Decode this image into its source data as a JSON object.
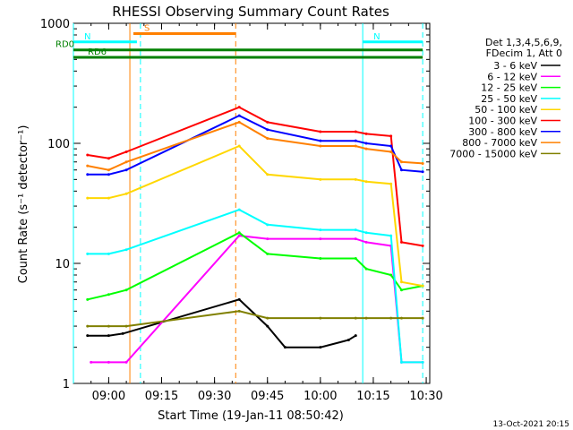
{
  "chart_data": {
    "type": "line",
    "title": "RHESSI Observing Summary Count Rates",
    "xlabel": "Start Time (19-Jan-11 08:50:42)",
    "ylabel": "Count Rate (s⁻¹ detector⁻¹)",
    "y_scale": "log",
    "ylim": [
      1,
      1000
    ],
    "xlim": [
      "08:50",
      "10:31"
    ],
    "y_ticks": [
      "1",
      "10",
      "100",
      "1000"
    ],
    "x_ticks": [
      "09:00",
      "09:15",
      "09:30",
      "09:45",
      "10:00",
      "10:15",
      "10:30"
    ],
    "footer": "13-Oct-2021 20:15",
    "legend": {
      "position": "top-right",
      "header": [
        "Det 1,3,4,5,6,9,",
        "FDecim 1, Att 0"
      ]
    },
    "flags": [
      {
        "label": "S",
        "color": "#ff8000",
        "start": "09:07",
        "end": "09:36",
        "level": 820
      },
      {
        "label": "N",
        "color": "#00ffff",
        "start": "08:50",
        "end": "09:08",
        "level": 700
      },
      {
        "label": "N",
        "color": "#00ffff",
        "start": "10:12",
        "end": "10:29",
        "level": 700
      },
      {
        "label": "RD0",
        "color": "#008000",
        "start": "08:50",
        "end": "10:29",
        "level": 600
      },
      {
        "label": "RD6",
        "color": "#008000",
        "start": "08:50",
        "end": "10:29",
        "level": 520
      }
    ],
    "event_lines": [
      {
        "time": "09:06",
        "color": "#ff8000",
        "style": "solid"
      },
      {
        "time": "09:36",
        "color": "#ff8000",
        "style": "dashed"
      },
      {
        "time": "08:50",
        "color": "#00ffff",
        "style": "solid"
      },
      {
        "time": "09:09",
        "color": "#00ffff",
        "style": "dashed"
      },
      {
        "time": "10:12",
        "color": "#00ffff",
        "style": "solid"
      },
      {
        "time": "10:29",
        "color": "#00ffff",
        "style": "dashed"
      }
    ],
    "series": [
      {
        "name": "3 - 6 keV",
        "color": "#000000",
        "times": [
          "08:54",
          "09:00",
          "09:04",
          "09:37",
          "09:45",
          "09:50",
          "10:00",
          "10:08",
          "10:10"
        ],
        "values": [
          2.5,
          2.5,
          2.6,
          5,
          3,
          2,
          2,
          2.3,
          2.5
        ]
      },
      {
        "name": "6 - 12 keV",
        "color": "#ff00ff",
        "times": [
          "08:55",
          "09:00",
          "09:05",
          "09:37",
          "09:45",
          "10:00",
          "10:10",
          "10:13",
          "10:20",
          "10:23",
          "10:29"
        ],
        "values": [
          1.5,
          1.5,
          1.5,
          17,
          16,
          16,
          16,
          15,
          14,
          1.5,
          1.5
        ]
      },
      {
        "name": "12 - 25 keV",
        "color": "#00ff00",
        "times": [
          "08:54",
          "09:00",
          "09:05",
          "09:37",
          "09:45",
          "10:00",
          "10:10",
          "10:13",
          "10:20",
          "10:23",
          "10:29"
        ],
        "values": [
          5,
          5.5,
          6,
          18,
          12,
          11,
          11,
          9,
          8,
          6,
          6.5
        ]
      },
      {
        "name": "25 - 50 keV",
        "color": "#00ffff",
        "times": [
          "08:54",
          "09:00",
          "09:05",
          "09:37",
          "09:45",
          "10:00",
          "10:10",
          "10:13",
          "10:20",
          "10:23",
          "10:29"
        ],
        "values": [
          12,
          12,
          13,
          28,
          21,
          19,
          19,
          18,
          17,
          1.5,
          1.5
        ]
      },
      {
        "name": "50 - 100 keV",
        "color": "#ffd700",
        "times": [
          "08:54",
          "09:00",
          "09:05",
          "09:37",
          "09:45",
          "10:00",
          "10:10",
          "10:13",
          "10:20",
          "10:23",
          "10:29"
        ],
        "values": [
          35,
          35,
          38,
          95,
          55,
          50,
          50,
          48,
          46,
          7,
          6.5
        ]
      },
      {
        "name": "100 - 300 keV",
        "color": "#ff0000",
        "times": [
          "08:54",
          "09:00",
          "09:05",
          "09:37",
          "09:45",
          "10:00",
          "10:10",
          "10:13",
          "10:20",
          "10:23",
          "10:29"
        ],
        "values": [
          80,
          75,
          85,
          200,
          150,
          125,
          125,
          120,
          115,
          15,
          14
        ]
      },
      {
        "name": "300 - 800 keV",
        "color": "#0000ff",
        "times": [
          "08:54",
          "09:00",
          "09:05",
          "09:37",
          "09:45",
          "10:00",
          "10:10",
          "10:13",
          "10:20",
          "10:23",
          "10:29"
        ],
        "values": [
          55,
          55,
          60,
          170,
          130,
          105,
          105,
          100,
          95,
          60,
          58
        ]
      },
      {
        "name": "800 - 7000 keV",
        "color": "#ff8000",
        "times": [
          "08:54",
          "09:00",
          "09:05",
          "09:37",
          "09:45",
          "10:00",
          "10:10",
          "10:13",
          "10:20",
          "10:23",
          "10:29"
        ],
        "values": [
          65,
          60,
          70,
          150,
          110,
          95,
          95,
          90,
          85,
          70,
          68
        ]
      },
      {
        "name": "7000 - 15000 keV",
        "color": "#808000",
        "times": [
          "08:54",
          "09:00",
          "09:05",
          "09:37",
          "09:45",
          "10:00",
          "10:10",
          "10:13",
          "10:20",
          "10:23",
          "10:29"
        ],
        "values": [
          3,
          3,
          3,
          4,
          3.5,
          3.5,
          3.5,
          3.5,
          3.5,
          3.5,
          3.5
        ]
      }
    ]
  }
}
